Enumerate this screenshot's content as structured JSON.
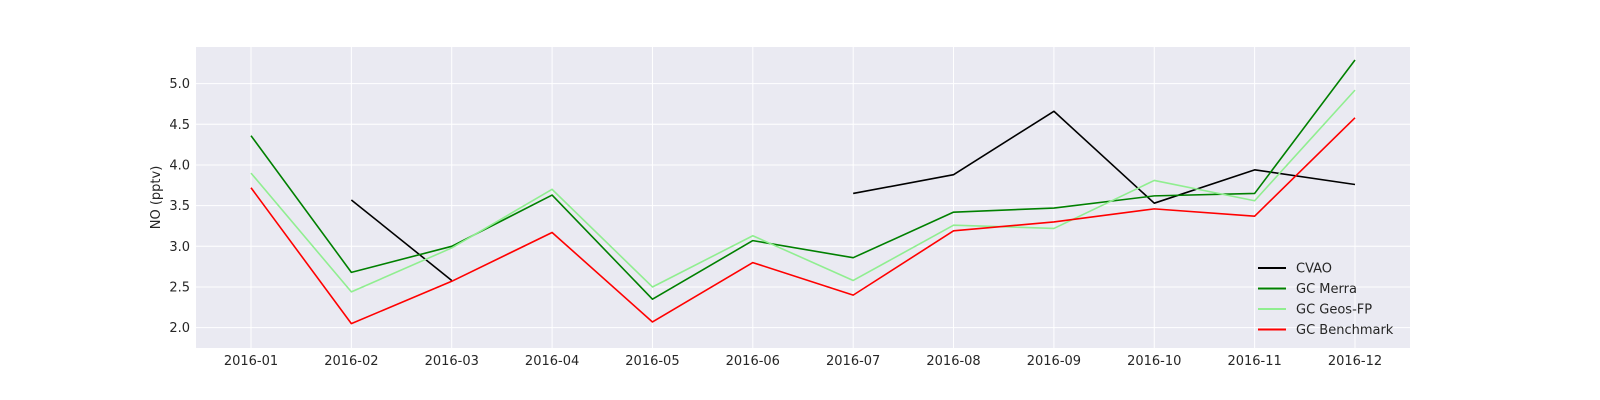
{
  "chart_data": {
    "type": "line",
    "title": "",
    "xlabel": "",
    "ylabel": "NO (pptv)",
    "x": [
      "2016-01",
      "2016-02",
      "2016-03",
      "2016-04",
      "2016-05",
      "2016-06",
      "2016-07",
      "2016-08",
      "2016-09",
      "2016-10",
      "2016-11",
      "2016-12"
    ],
    "ylim": [
      1.75,
      5.45
    ],
    "yticks": [
      "2.0",
      "2.5",
      "3.0",
      "3.5",
      "4.0",
      "4.5",
      "5.0"
    ],
    "grid": true,
    "legend_position": "lower-right",
    "background_color": "#eaeaf2",
    "grid_color": "#ffffff",
    "series": [
      {
        "name": "CVAO",
        "color": "#000000",
        "values": [
          null,
          3.57,
          2.58,
          null,
          null,
          null,
          3.65,
          3.88,
          4.66,
          3.53,
          3.94,
          3.76
        ]
      },
      {
        "name": "GC Merra",
        "color": "#008000",
        "values": [
          4.36,
          2.68,
          3.0,
          3.63,
          2.35,
          3.07,
          2.86,
          3.42,
          3.47,
          3.62,
          3.65,
          5.29
        ]
      },
      {
        "name": "GC Geos-FP",
        "color": "#90ee90",
        "values": [
          3.9,
          2.44,
          2.98,
          3.7,
          2.5,
          3.13,
          2.58,
          3.26,
          3.22,
          3.81,
          3.56,
          4.92
        ]
      },
      {
        "name": "GC Benchmark",
        "color": "#ff0000",
        "values": [
          3.72,
          2.05,
          2.57,
          3.17,
          2.07,
          2.8,
          2.4,
          3.19,
          3.3,
          3.46,
          3.37,
          4.58
        ]
      }
    ]
  }
}
